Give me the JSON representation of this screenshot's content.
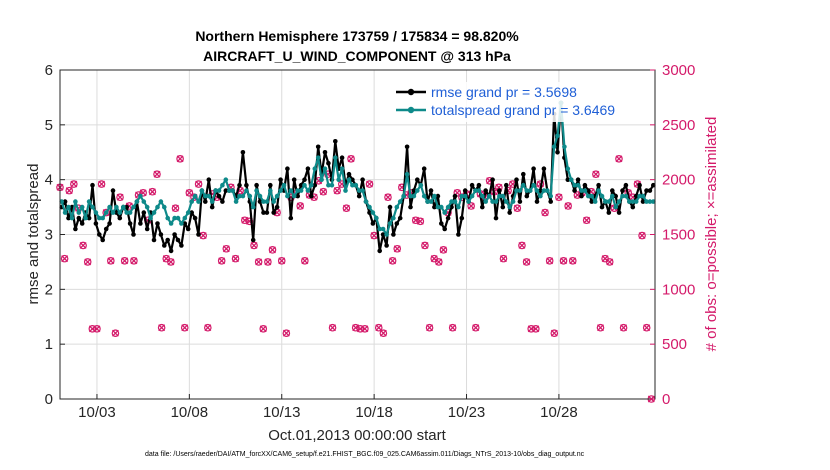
{
  "chart_data": {
    "type": "line",
    "title": "Northern Hemisphere 173759 / 175834 = 98.820%",
    "subtitle": "AIRCRAFT_U_WIND_COMPONENT @ 313 hPa",
    "xlabel": "Oct.01,2013 00:00:00 start",
    "ylabel_left": "rmse and totalspread",
    "ylabel_right": "# of obs: o=possible; ×=assimilated",
    "footnote": "data file: /Users/raeder/DAI/ATM_forcXX/CAM6_setup/f.e21.FHIST_BGC.f09_025.CAM6assim.011/Diags_NTrS_2013-10/obs_diag_output.nc",
    "x_tick_labels": [
      "10/03",
      "10/08",
      "10/13",
      "10/18",
      "10/23",
      "10/28"
    ],
    "x_tick_days": [
      3,
      8,
      13,
      18,
      23,
      28
    ],
    "xlim_days": [
      1,
      33.2
    ],
    "ylim_left": [
      0,
      6
    ],
    "y_ticks_left": [
      "0",
      "1",
      "2",
      "3",
      "4",
      "5",
      "6"
    ],
    "ylim_right": [
      0,
      3000
    ],
    "y_ticks_right": [
      "0",
      "500",
      "1000",
      "1500",
      "2000",
      "2500",
      "3000"
    ],
    "legend_placement": "top-right",
    "grid": true,
    "colors": {
      "rmse": "#000000",
      "totalspread": "#0e8a8a",
      "obs": "#d41a6a",
      "legend_text": "#1f5fd6"
    },
    "series": [
      {
        "name": "rmse grand pr = 3.5698",
        "values": [
          3.5,
          3.6,
          3.3,
          3.5,
          3.1,
          3.3,
          3.2,
          3.4,
          3.3,
          3.9,
          3.2,
          3.0,
          2.9,
          3.1,
          3.2,
          3.8,
          3.4,
          3.3,
          3.5,
          3.5,
          3.2,
          3.0,
          3.6,
          3.2,
          3.4,
          3.1,
          3.4,
          2.9,
          3.2,
          3.0,
          2.8,
          2.9,
          2.7,
          3.0,
          2.9,
          2.8,
          3.2,
          3.1,
          3.4,
          3.3,
          3.0,
          3.8,
          3.6,
          4.0,
          3.5,
          3.8,
          3.7,
          3.6,
          3.8,
          3.8,
          3.8,
          3.7,
          3.9,
          4.5,
          3.9,
          3.6,
          2.9,
          3.9,
          3.6,
          3.4,
          3.4,
          3.9,
          3.4,
          3.5,
          4.0,
          3.8,
          4.2,
          3.3,
          4.0,
          3.7,
          3.9,
          4.0,
          4.2,
          3.7,
          3.9,
          4.6,
          4.1,
          4.5,
          4.3,
          4.0,
          4.7,
          4.2,
          4.4,
          3.9,
          4.1,
          4.0,
          3.9,
          3.7,
          4.0,
          3.6,
          3.4,
          3.2,
          3.3,
          2.7,
          3.0,
          2.8,
          3.5,
          3.0,
          3.2,
          3.3,
          3.7,
          4.6,
          3.5,
          3.8,
          4.0,
          3.9,
          4.2,
          3.6,
          3.8,
          3.5,
          3.7,
          3.2,
          3.1,
          3.3,
          3.5,
          3.7,
          3.0,
          3.3,
          3.8,
          3.6,
          3.9,
          3.8,
          3.9,
          3.5,
          3.8,
          3.7,
          4.0,
          3.3,
          3.8,
          3.5,
          3.9,
          3.4,
          3.7,
          4.0,
          3.6,
          4.1,
          3.7,
          3.8,
          4.2,
          3.6,
          3.8,
          4.2,
          3.8,
          3.6,
          5.2,
          4.5,
          5.4,
          4.4,
          4.0,
          4.0,
          3.8,
          4.0,
          3.7,
          3.9,
          3.8,
          3.6,
          3.7,
          3.9,
          3.5,
          3.6,
          3.4,
          3.8,
          3.7,
          3.4,
          3.8,
          3.9,
          3.6,
          3.5,
          3.7,
          3.9,
          3.6,
          3.8,
          3.8,
          3.9
        ]
      },
      {
        "name": "totalspread grand pr = 3.6469",
        "values": [
          3.6,
          3.4,
          3.5,
          3.3,
          3.6,
          3.4,
          3.5,
          3.3,
          3.6,
          3.5,
          3.4,
          3.3,
          3.3,
          3.4,
          3.5,
          3.4,
          3.5,
          3.4,
          3.5,
          3.4,
          3.4,
          3.5,
          3.6,
          3.7,
          3.6,
          3.5,
          3.3,
          3.4,
          3.5,
          3.6,
          3.5,
          3.3,
          3.2,
          3.3,
          3.3,
          3.2,
          3.3,
          3.4,
          3.6,
          3.7,
          3.6,
          3.8,
          3.7,
          3.7,
          3.6,
          3.8,
          3.8,
          3.9,
          4.0,
          3.8,
          3.8,
          3.6,
          3.7,
          3.7,
          3.8,
          3.7,
          3.5,
          3.8,
          3.7,
          3.6,
          3.6,
          3.8,
          3.6,
          3.7,
          3.8,
          3.9,
          3.7,
          3.8,
          3.7,
          3.8,
          3.8,
          3.9,
          3.8,
          3.9,
          4.2,
          4.4,
          4.0,
          4.2,
          3.9,
          3.9,
          4.4,
          4.0,
          4.2,
          3.8,
          4.0,
          3.9,
          3.9,
          3.8,
          3.8,
          3.6,
          3.5,
          3.4,
          3.3,
          3.1,
          3.1,
          3.0,
          3.2,
          3.3,
          3.5,
          3.6,
          3.7,
          4.1,
          3.7,
          3.7,
          3.8,
          3.9,
          3.7,
          3.6,
          3.6,
          3.7,
          3.5,
          3.5,
          3.4,
          3.5,
          3.6,
          3.6,
          3.5,
          3.7,
          3.7,
          3.6,
          3.7,
          3.8,
          3.8,
          3.7,
          3.6,
          3.7,
          3.6,
          3.6,
          3.7,
          3.7,
          3.6,
          3.5,
          3.6,
          3.8,
          3.8,
          3.9,
          3.8,
          3.8,
          3.9,
          3.8,
          3.7,
          3.8,
          3.8,
          3.7,
          4.6,
          4.8,
          5.4,
          4.6,
          4.2,
          4.0,
          3.9,
          3.9,
          3.8,
          3.8,
          3.7,
          3.7,
          3.6,
          3.8,
          3.7,
          3.6,
          3.6,
          3.7,
          3.5,
          3.6,
          3.7,
          3.7,
          3.6,
          3.6,
          3.6,
          3.7,
          3.7,
          3.6,
          3.6,
          3.6
        ]
      }
    ],
    "obs_counts_pattern": [
      1930,
      1260,
      650,
      1260,
      650,
      1250,
      650,
      1280,
      1860,
      1870,
      600,
      1880,
      640,
      1280,
      1900,
      1880,
      1840,
      1840,
      1840,
      640,
      1250,
      1960,
      1630,
      1990,
      1260,
      1870,
      1960,
      1360,
      1740,
      1620,
      1890,
      1370,
      1760,
      1490,
      1700,
      2190,
      1400,
      2050
    ],
    "obs_counts_last": 0
  }
}
